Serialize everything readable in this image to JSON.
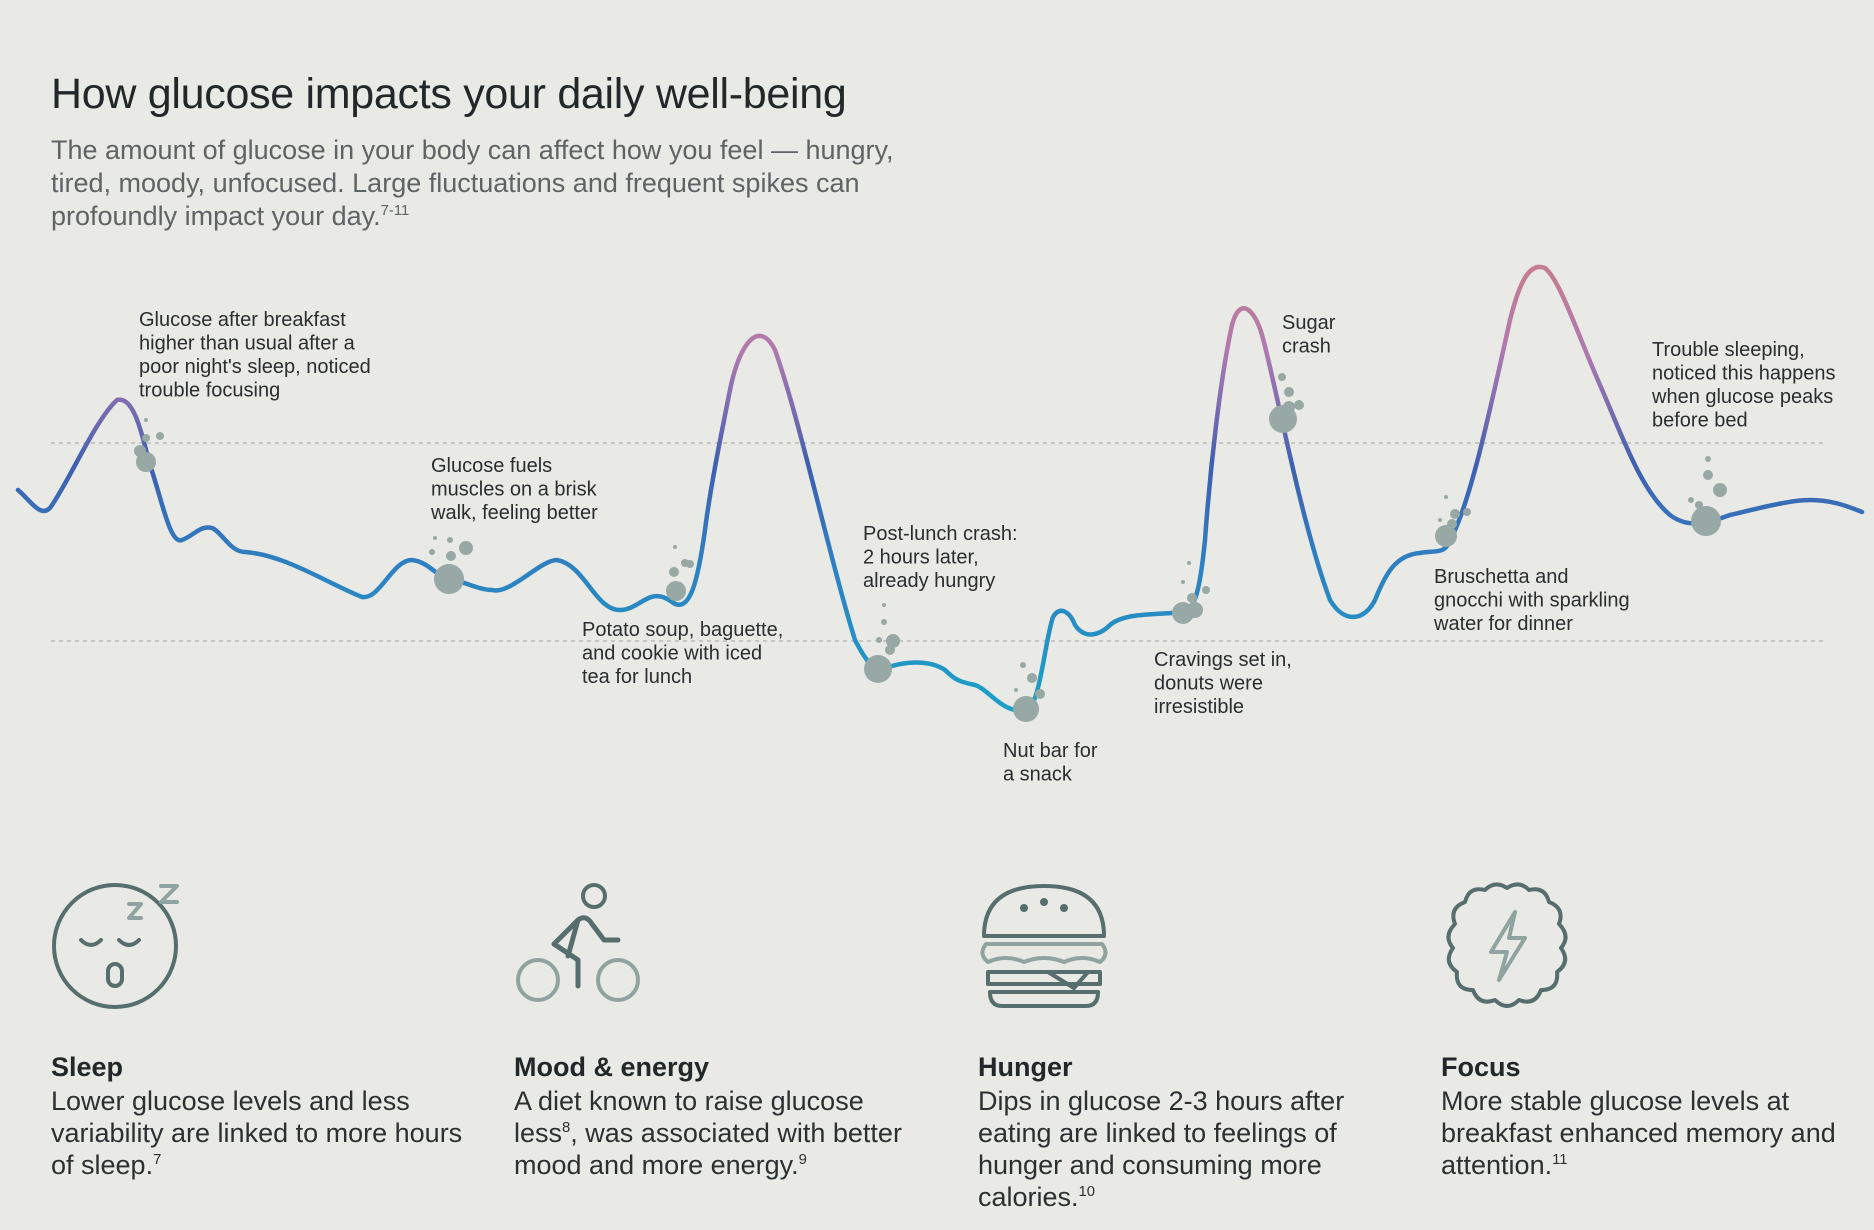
{
  "header": {
    "title": "How glucose impacts your daily well-being",
    "subtitle": "The amount of glucose in your body can affect how you feel — hungry, tired, moody, unfocused. Large fluctuations and frequent spikes can profoundly impact your day.",
    "subtitle_ref": "7-11"
  },
  "colors": {
    "background": "#e9e9e5",
    "curve_low": "#1aa3c8",
    "curve_mid": "#3f5fb0",
    "curve_high": "#b079b0",
    "curve_peak": "#c67e8e",
    "marker": "#97a8a5",
    "icon": "#566e6d"
  },
  "annotations": [
    {
      "id": "breakfast",
      "lines": [
        "Glucose after breakfast",
        "higher than usual after a",
        "poor night's sleep, noticed",
        "trouble focusing"
      ]
    },
    {
      "id": "walk",
      "lines": [
        "Glucose fuels",
        "muscles on a brisk",
        "walk, feeling better"
      ]
    },
    {
      "id": "lunch",
      "lines": [
        "Potato soup, baguette,",
        "and cookie with iced",
        "tea for lunch"
      ]
    },
    {
      "id": "post-lunch",
      "lines": [
        "Post-lunch crash:",
        "2 hours later,",
        "already hungry"
      ]
    },
    {
      "id": "snack",
      "lines": [
        "Nut bar for",
        "a snack"
      ]
    },
    {
      "id": "cravings",
      "lines": [
        "Cravings set in,",
        "donuts were",
        "irresistible"
      ]
    },
    {
      "id": "sugar-crash",
      "lines": [
        "Sugar",
        "crash"
      ]
    },
    {
      "id": "dinner",
      "lines": [
        "Bruschetta and",
        "gnocchi with sparkling",
        "water for dinner"
      ]
    },
    {
      "id": "sleep",
      "lines": [
        "Trouble sleeping,",
        "noticed this happens",
        "when glucose peaks",
        "before bed"
      ]
    }
  ],
  "cards": [
    {
      "icon": "sleeping-face-icon",
      "title": "Sleep",
      "body": "Lower glucose levels and less variability are linked to more hours of sleep.",
      "ref": "7"
    },
    {
      "icon": "cyclist-icon",
      "title": "Mood & energy",
      "body_parts": [
        "A diet known to raise glucose less",
        "8",
        ", was associated with better mood and more energy.",
        "9"
      ]
    },
    {
      "icon": "burger-icon",
      "title": "Hunger",
      "body": "Dips in glucose 2-3 hours after eating are linked to feelings of hunger and consuming more calories.",
      "ref": "10"
    },
    {
      "icon": "brain-lightning-icon",
      "title": "Focus",
      "body": "More stable glucose levels at breakfast enhanced memory and attention.",
      "ref": "11"
    }
  ]
}
